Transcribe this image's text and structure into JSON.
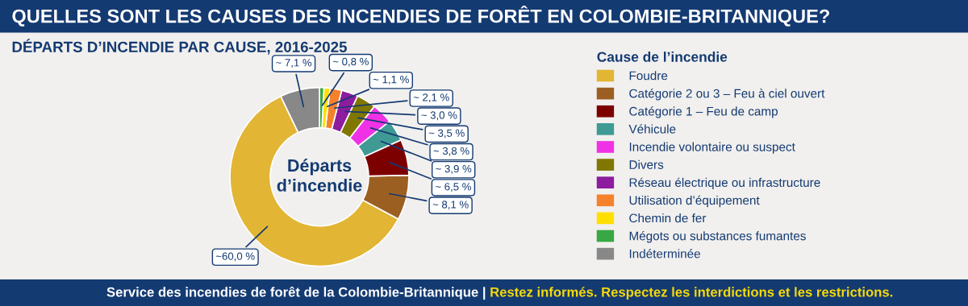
{
  "chart_data": {
    "type": "donut",
    "title": "QUELLES SONT LES CAUSES DES INCENDIES DE FORÊT EN COLOMBIE-BRITANNIQUE?",
    "subtitle": "DÉPARTS D’INCENDIE PAR CAUSE, 2016-2025",
    "legend_title": "Cause de l’incendie",
    "legend": "right",
    "categories": [
      "Foudre",
      "Catégorie 2 ou 3 – Feu à ciel ouvert",
      "Catégorie 1 – Feu de camp",
      "Véhicule",
      "Incendie volontaire ou suspect",
      "Divers",
      "Réseau électrique ou infrastructure",
      "Utilisation d’équipement",
      "Chemin de fer",
      "Mégots ou substances fumantes",
      "Indéterminée"
    ],
    "values": [
      60.0,
      8.1,
      6.5,
      3.9,
      3.8,
      3.5,
      3.0,
      2.1,
      1.1,
      0.8,
      7.1
    ],
    "colors": [
      "#e2b534",
      "#9c5f22",
      "#7d0000",
      "#3f9a94",
      "#f032e6",
      "#7f7700",
      "#8d1c9e",
      "#f5822b",
      "#ffdf00",
      "#37a843",
      "#888888"
    ],
    "value_labels": [
      "~60,0 %",
      "~ 8,1 %",
      "~ 6,5 %",
      "~ 3,9 %",
      "~ 3,8 %",
      "~ 3,5 %",
      "~ 3,0 %",
      "~ 2,1 %",
      "~ 1,1 %",
      "~ 0,8 %",
      "~ 7,1 %"
    ],
    "annotations": [
      "Départs\nd’incendie",
      "Service des incendies de forêt de la Colombie-Britannique | ",
      "Restez informés. Respectez les interdictions et les restrictions."
    ]
  }
}
